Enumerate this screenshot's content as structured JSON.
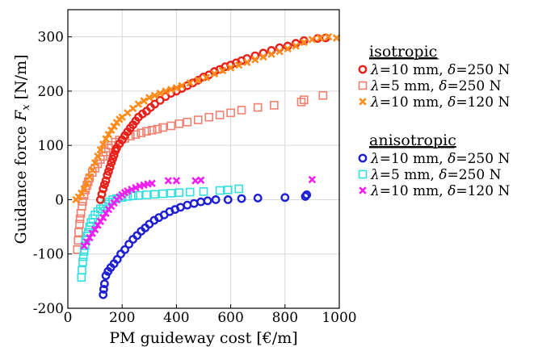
{
  "chart_data": {
    "type": "scatter",
    "xlabel": "PM guideway cost [€/m]",
    "ylabel_prefix": "Guidance force ",
    "ylabel_var": "F",
    "ylabel_sub": "x",
    "ylabel_unit": " [N/m]",
    "xlim": [
      0,
      1000
    ],
    "ylim": [
      -200,
      350
    ],
    "xticks": [
      0,
      200,
      400,
      600,
      800,
      1000
    ],
    "yticks": [
      -200,
      -100,
      0,
      100,
      200,
      300
    ],
    "grid": true,
    "legend_position": "outside-right",
    "groups": [
      {
        "title": "isotropic",
        "series": [
          {
            "name": "λ=10 mm, δ=250 N",
            "lambda_val": "=10 mm, ",
            "delta_val": "=250 N",
            "marker": "circle",
            "color": "#e8201a",
            "points": [
              [
                120,
                0
              ],
              [
                125,
                10
              ],
              [
                130,
                20
              ],
              [
                135,
                28
              ],
              [
                140,
                35
              ],
              [
                145,
                45
              ],
              [
                150,
                52
              ],
              [
                155,
                60
              ],
              [
                160,
                68
              ],
              [
                165,
                75
              ],
              [
                170,
                82
              ],
              [
                175,
                90
              ],
              [
                180,
                95
              ],
              [
                190,
                103
              ],
              [
                200,
                110
              ],
              [
                210,
                118
              ],
              [
                220,
                125
              ],
              [
                230,
                132
              ],
              [
                240,
                138
              ],
              [
                250,
                145
              ],
              [
                260,
                152
              ],
              [
                275,
                158
              ],
              [
                290,
                163
              ],
              [
                305,
                170
              ],
              [
                320,
                176
              ],
              [
                340,
                183
              ],
              [
                360,
                190
              ],
              [
                380,
                196
              ],
              [
                400,
                200
              ],
              [
                420,
                205
              ],
              [
                440,
                210
              ],
              [
                460,
                215
              ],
              [
                480,
                220
              ],
              [
                500,
                226
              ],
              [
                520,
                230
              ],
              [
                540,
                236
              ],
              [
                560,
                240
              ],
              [
                580,
                245
              ],
              [
                600,
                248
              ],
              [
                620,
                252
              ],
              [
                640,
                256
              ],
              [
                660,
                260
              ],
              [
                690,
                265
              ],
              [
                720,
                270
              ],
              [
                750,
                275
              ],
              [
                780,
                280
              ],
              [
                810,
                283
              ],
              [
                840,
                288
              ],
              [
                870,
                293
              ],
              [
                920,
                297
              ],
              [
                950,
                298
              ]
            ]
          },
          {
            "name": "λ=5 mm, δ=250 N",
            "lambda_val": "=5 mm, ",
            "delta_val": "=250 N",
            "marker": "square",
            "color": "#f08070",
            "points": [
              [
                35,
                -92
              ],
              [
                38,
                -75
              ],
              [
                40,
                -60
              ],
              [
                43,
                -45
              ],
              [
                45,
                -35
              ],
              [
                48,
                -25
              ],
              [
                52,
                -12
              ],
              [
                55,
                -3
              ],
              [
                60,
                8
              ],
              [
                65,
                18
              ],
              [
                70,
                26
              ],
              [
                75,
                33
              ],
              [
                80,
                40
              ],
              [
                90,
                50
              ],
              [
                100,
                58
              ],
              [
                110,
                66
              ],
              [
                120,
                74
              ],
              [
                130,
                80
              ],
              [
                140,
                88
              ],
              [
                150,
                95
              ],
              [
                160,
                100
              ],
              [
                175,
                106
              ],
              [
                190,
                110
              ],
              [
                210,
                113
              ],
              [
                230,
                117
              ],
              [
                250,
                120
              ],
              [
                270,
                123
              ],
              [
                290,
                126
              ],
              [
                310,
                128
              ],
              [
                330,
                130
              ],
              [
                350,
                133
              ],
              [
                380,
                136
              ],
              [
                410,
                140
              ],
              [
                440,
                143
              ],
              [
                480,
                147
              ],
              [
                520,
                152
              ],
              [
                560,
                156
              ],
              [
                600,
                160
              ],
              [
                640,
                165
              ],
              [
                700,
                170
              ],
              [
                760,
                174
              ],
              [
                860,
                180
              ],
              [
                870,
                184
              ],
              [
                940,
                192
              ]
            ]
          },
          {
            "name": "λ=10 mm, δ=120 N",
            "lambda_val": "=10 mm, ",
            "delta_val": "=120 N",
            "marker": "x",
            "color": "#ff8c1a",
            "points": [
              [
                30,
                0
              ],
              [
                40,
                5
              ],
              [
                50,
                12
              ],
              [
                60,
                20
              ],
              [
                70,
                30
              ],
              [
                80,
                42
              ],
              [
                90,
                55
              ],
              [
                100,
                68
              ],
              [
                110,
                80
              ],
              [
                120,
                92
              ],
              [
                130,
                102
              ],
              [
                140,
                112
              ],
              [
                150,
                120
              ],
              [
                160,
                128
              ],
              [
                170,
                135
              ],
              [
                180,
                142
              ],
              [
                190,
                148
              ],
              [
                200,
                152
              ],
              [
                220,
                160
              ],
              [
                240,
                168
              ],
              [
                260,
                176
              ],
              [
                280,
                182
              ],
              [
                300,
                188
              ],
              [
                320,
                192
              ],
              [
                340,
                196
              ],
              [
                360,
                200
              ],
              [
                380,
                203
              ],
              [
                400,
                206
              ],
              [
                420,
                210
              ],
              [
                450,
                215
              ],
              [
                480,
                220
              ],
              [
                510,
                225
              ],
              [
                540,
                232
              ],
              [
                570,
                238
              ],
              [
                600,
                243
              ],
              [
                630,
                248
              ],
              [
                660,
                253
              ],
              [
                690,
                258
              ],
              [
                720,
                263
              ],
              [
                750,
                268
              ],
              [
                780,
                273
              ],
              [
                810,
                278
              ],
              [
                840,
                283
              ],
              [
                870,
                290
              ],
              [
                900,
                295
              ],
              [
                930,
                298
              ],
              [
                960,
                300
              ],
              [
                990,
                298
              ]
            ]
          }
        ]
      },
      {
        "title": "anisotropic",
        "series": [
          {
            "name": "λ=10 mm, δ=250 N",
            "lambda_val": "=10 mm, ",
            "delta_val": "=250 N",
            "marker": "circle",
            "color": "#1e1ed2",
            "points": [
              [
                130,
                -175
              ],
              [
                132,
                -165
              ],
              [
                135,
                -155
              ],
              [
                140,
                -140
              ],
              [
                148,
                -132
              ],
              [
                158,
                -125
              ],
              [
                170,
                -118
              ],
              [
                182,
                -110
              ],
              [
                195,
                -100
              ],
              [
                210,
                -92
              ],
              [
                225,
                -82
              ],
              [
                240,
                -73
              ],
              [
                255,
                -66
              ],
              [
                270,
                -58
              ],
              [
                285,
                -52
              ],
              [
                300,
                -45
              ],
              [
                318,
                -38
              ],
              [
                335,
                -33
              ],
              [
                355,
                -28
              ],
              [
                375,
                -22
              ],
              [
                395,
                -18
              ],
              [
                415,
                -14
              ],
              [
                440,
                -10
              ],
              [
                465,
                -7
              ],
              [
                490,
                -4
              ],
              [
                515,
                -2
              ],
              [
                545,
                0
              ],
              [
                590,
                0
              ],
              [
                640,
                2
              ],
              [
                700,
                3
              ],
              [
                800,
                4
              ],
              [
                875,
                6
              ],
              [
                880,
                9
              ]
            ]
          },
          {
            "name": "λ=5 mm, δ=250 N",
            "lambda_val": "=5 mm, ",
            "delta_val": "=250 N",
            "marker": "square",
            "color": "#33e0e0",
            "points": [
              [
                50,
                -143
              ],
              [
                52,
                -130
              ],
              [
                55,
                -115
              ],
              [
                57,
                -105
              ],
              [
                60,
                -95
              ],
              [
                63,
                -85
              ],
              [
                66,
                -75
              ],
              [
                70,
                -67
              ],
              [
                75,
                -60
              ],
              [
                80,
                -50
              ],
              [
                85,
                -42
              ],
              [
                92,
                -35
              ],
              [
                100,
                -28
              ],
              [
                110,
                -22
              ],
              [
                120,
                -17
              ],
              [
                130,
                -12
              ],
              [
                140,
                -8
              ],
              [
                150,
                -4
              ],
              [
                165,
                0
              ],
              [
                180,
                2
              ],
              [
                200,
                4
              ],
              [
                220,
                6
              ],
              [
                240,
                7
              ],
              [
                260,
                8
              ],
              [
                290,
                9
              ],
              [
                320,
                10
              ],
              [
                350,
                11
              ],
              [
                380,
                12
              ],
              [
                410,
                13
              ],
              [
                450,
                14
              ],
              [
                500,
                15
              ],
              [
                560,
                17
              ],
              [
                590,
                18
              ],
              [
                630,
                20
              ]
            ]
          },
          {
            "name": "λ=10 mm, δ=120 N",
            "lambda_val": "=10 mm, ",
            "delta_val": "=120 N",
            "marker": "x",
            "color": "#f020f0",
            "points": [
              [
                60,
                -85
              ],
              [
                70,
                -78
              ],
              [
                80,
                -70
              ],
              [
                90,
                -62
              ],
              [
                100,
                -55
              ],
              [
                110,
                -47
              ],
              [
                120,
                -40
              ],
              [
                130,
                -33
              ],
              [
                140,
                -25
              ],
              [
                150,
                -18
              ],
              [
                160,
                -12
              ],
              [
                170,
                -6
              ],
              [
                180,
                0
              ],
              [
                190,
                5
              ],
              [
                200,
                9
              ],
              [
                210,
                13
              ],
              [
                220,
                16
              ],
              [
                235,
                19
              ],
              [
                250,
                22
              ],
              [
                265,
                25
              ],
              [
                280,
                27
              ],
              [
                295,
                29
              ],
              [
                310,
                30
              ],
              [
                370,
                35
              ],
              [
                400,
                35
              ],
              [
                470,
                35
              ],
              [
                490,
                36
              ],
              [
                900,
                37
              ]
            ]
          }
        ]
      }
    ]
  }
}
